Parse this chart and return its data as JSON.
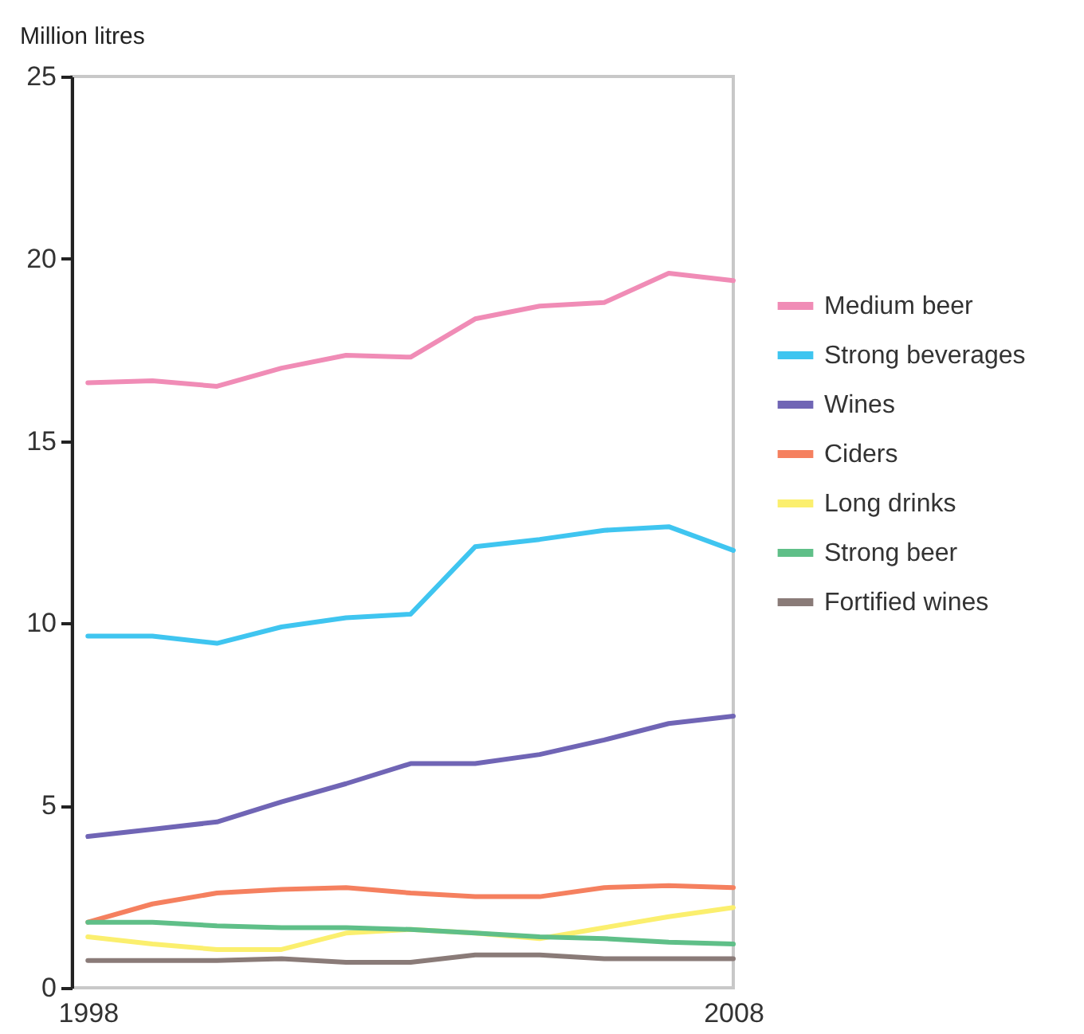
{
  "chart_data": {
    "type": "line",
    "ylabel": "Million litres",
    "x": [
      1998,
      1999,
      2000,
      2001,
      2002,
      2003,
      2004,
      2005,
      2006,
      2007,
      2008
    ],
    "xlim": [
      1997.75,
      2008
    ],
    "xticks": [
      1998,
      2008
    ],
    "ylim": [
      0,
      25
    ],
    "yticks": [
      0,
      5,
      10,
      15,
      20,
      25
    ],
    "grid": false,
    "legend": "right",
    "marker": "none",
    "line_style": "solid",
    "series": [
      {
        "name": "Medium beer",
        "color": "#f08cb6",
        "values": [
          16.6,
          16.65,
          16.5,
          17.0,
          17.35,
          17.3,
          18.35,
          18.7,
          18.8,
          19.6,
          19.4
        ]
      },
      {
        "name": "Strong beverages",
        "color": "#3fc5f0",
        "values": [
          9.65,
          9.65,
          9.45,
          9.9,
          10.15,
          10.25,
          12.1,
          12.3,
          12.55,
          12.65,
          12.0
        ]
      },
      {
        "name": "Wines",
        "color": "#7065b5",
        "values": [
          4.15,
          4.35,
          4.55,
          5.1,
          5.6,
          6.15,
          6.15,
          6.4,
          6.8,
          7.25,
          7.45
        ]
      },
      {
        "name": "Ciders",
        "color": "#f5805f",
        "values": [
          1.8,
          2.3,
          2.6,
          2.7,
          2.75,
          2.6,
          2.5,
          2.5,
          2.75,
          2.8,
          2.75
        ]
      },
      {
        "name": "Long drinks",
        "color": "#fbef6e",
        "values": [
          1.4,
          1.2,
          1.05,
          1.05,
          1.5,
          1.6,
          1.5,
          1.35,
          1.65,
          1.95,
          2.2
        ]
      },
      {
        "name": "Strong beer",
        "color": "#5fbf88",
        "values": [
          1.8,
          1.8,
          1.7,
          1.65,
          1.65,
          1.6,
          1.5,
          1.4,
          1.35,
          1.25,
          1.2
        ]
      },
      {
        "name": "Fortified wines",
        "color": "#8a7b78",
        "values": [
          0.75,
          0.75,
          0.75,
          0.8,
          0.7,
          0.7,
          0.9,
          0.9,
          0.8,
          0.8,
          0.8
        ]
      }
    ]
  }
}
